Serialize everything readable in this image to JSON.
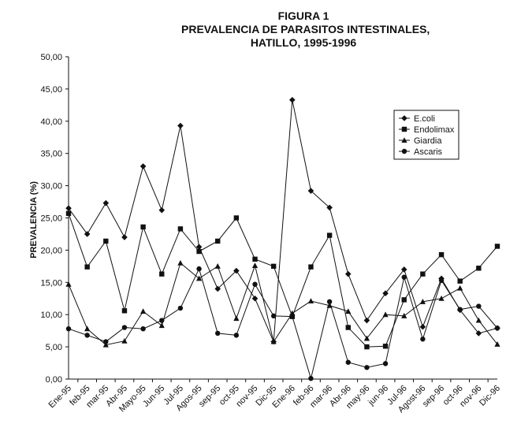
{
  "chart_data": {
    "type": "line",
    "title_lines": [
      "FIGURA 1",
      "PREVALENCIA DE PARASITOS INTESTINALES,",
      "HATILLO, 1995-1996"
    ],
    "ylabel": "PREVALENCIA (%)",
    "xlabel": "",
    "ylim": [
      0,
      50
    ],
    "yticks": [
      "0,00",
      "5,00",
      "10,00",
      "15,00",
      "20,00",
      "25,00",
      "30,00",
      "35,00",
      "40,00",
      "45,00",
      "50,00"
    ],
    "grid": false,
    "legend_position": "top-right",
    "categories": [
      "Ene-95",
      "feb-95",
      "mar-95",
      "Abr-95",
      "Mayo-95",
      "Jun-95",
      "Jul-95",
      "Agos-95",
      "sep-95",
      "oct-95",
      "nov-95",
      "Dic-95",
      "Ene-96",
      "feb-96",
      "mar-96",
      "Abr-96",
      "may-96",
      "jun-96",
      "Jul-96",
      "Agost-96",
      "sep-96",
      "oct-96",
      "nov-96",
      "Dic-96"
    ],
    "series": [
      {
        "name": "E.coli",
        "marker": "diamond",
        "values": [
          26.5,
          22.5,
          27.3,
          22.0,
          33.0,
          26.2,
          39.3,
          20.5,
          14.0,
          16.8,
          12.5,
          5.8,
          43.3,
          29.2,
          26.6,
          16.3,
          9.1,
          13.3,
          17.0,
          8.1,
          15.6,
          10.7,
          7.1,
          7.9
        ]
      },
      {
        "name": "Endolimax",
        "marker": "square",
        "values": [
          25.7,
          17.4,
          21.4,
          10.6,
          23.6,
          16.3,
          23.3,
          19.8,
          21.4,
          25.0,
          18.6,
          17.5,
          9.7,
          17.4,
          22.3,
          8.0,
          5.0,
          5.1,
          12.3,
          16.3,
          19.3,
          15.2,
          17.2,
          20.6
        ]
      },
      {
        "name": "Giardia",
        "marker": "triangle",
        "values": [
          14.7,
          7.8,
          5.3,
          5.9,
          10.5,
          8.3,
          18.0,
          15.6,
          17.5,
          9.4,
          17.6,
          5.8,
          10.2,
          12.1,
          11.4,
          10.5,
          6.3,
          10.0,
          9.8,
          12.0,
          12.5,
          14.1,
          9.1,
          5.4
        ]
      },
      {
        "name": "Ascaris",
        "marker": "circle",
        "values": [
          7.8,
          6.8,
          5.8,
          8.0,
          7.8,
          9.1,
          11.0,
          17.1,
          7.1,
          6.8,
          14.7,
          9.8,
          9.7,
          0.1,
          12.0,
          2.6,
          1.8,
          2.4,
          15.8,
          6.2,
          15.3,
          10.8,
          11.3,
          7.9
        ]
      }
    ]
  }
}
